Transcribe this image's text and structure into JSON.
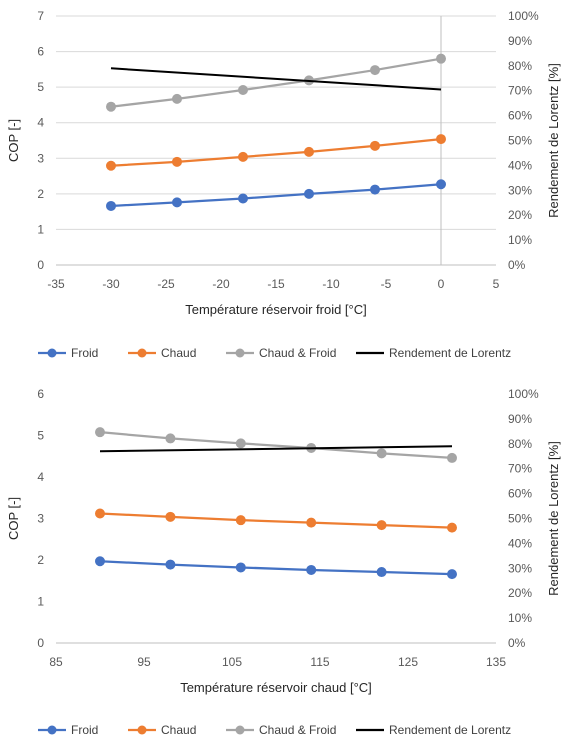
{
  "chart_data": [
    {
      "type": "line",
      "xlabel": "Température réservoir froid [°C]",
      "ylabel": "COP [-]",
      "y2label": "Rendement de Lorentz [%]",
      "xlim": [
        -35,
        5
      ],
      "xticks": [
        "-35",
        "-30",
        "-25",
        "-20",
        "-15",
        "-10",
        "-5",
        "0",
        "5"
      ],
      "ylim": [
        0,
        7
      ],
      "yticks": [
        "0",
        "1",
        "2",
        "3",
        "4",
        "5",
        "6",
        "7"
      ],
      "y2lim": [
        0,
        100
      ],
      "y2ticks": [
        "0%",
        "10%",
        "20%",
        "30%",
        "40%",
        "50%",
        "60%",
        "70%",
        "80%",
        "90%",
        "100%"
      ],
      "grid": true,
      "legend_position": "bottom",
      "series": [
        {
          "name": "Froid",
          "axis": "left",
          "color": "#4472C4",
          "markers": true,
          "x": [
            -30,
            -24,
            -18,
            -12,
            -6,
            0
          ],
          "values": [
            1.66,
            1.76,
            1.87,
            2.0,
            2.12,
            2.27
          ]
        },
        {
          "name": "Chaud",
          "axis": "left",
          "color": "#ED7D31",
          "markers": true,
          "x": [
            -30,
            -24,
            -18,
            -12,
            -6,
            0
          ],
          "values": [
            2.79,
            2.9,
            3.04,
            3.18,
            3.35,
            3.54
          ]
        },
        {
          "name": "Chaud & Froid",
          "axis": "left",
          "color": "#A5A5A5",
          "markers": true,
          "x": [
            -30,
            -24,
            -18,
            -12,
            -6,
            0
          ],
          "values": [
            4.45,
            4.67,
            4.92,
            5.19,
            5.48,
            5.8
          ]
        },
        {
          "name": "Rendement de Lorentz",
          "axis": "right",
          "color": "#000000",
          "markers": false,
          "x": [
            -30,
            0
          ],
          "values": [
            79,
            70.5
          ]
        }
      ]
    },
    {
      "type": "line",
      "xlabel": "Température réservoir chaud [°C]",
      "ylabel": "COP [-]",
      "y2label": "Rendement de Lorentz [%]",
      "xlim": [
        85,
        135
      ],
      "xticks": [
        "85",
        "95",
        "105",
        "115",
        "125",
        "135"
      ],
      "ylim": [
        0,
        6
      ],
      "yticks": [
        "0",
        "1",
        "2",
        "3",
        "4",
        "5",
        "6"
      ],
      "y2lim": [
        0,
        100
      ],
      "y2ticks": [
        "0%",
        "10%",
        "20%",
        "30%",
        "40%",
        "50%",
        "60%",
        "70%",
        "80%",
        "90%",
        "100%"
      ],
      "grid": false,
      "legend_position": "bottom",
      "series": [
        {
          "name": "Froid",
          "axis": "left",
          "color": "#4472C4",
          "markers": true,
          "x": [
            90,
            98,
            106,
            114,
            122,
            130
          ],
          "values": [
            1.97,
            1.89,
            1.82,
            1.76,
            1.71,
            1.66
          ]
        },
        {
          "name": "Chaud",
          "axis": "left",
          "color": "#ED7D31",
          "markers": true,
          "x": [
            90,
            98,
            106,
            114,
            122,
            130
          ],
          "values": [
            3.12,
            3.04,
            2.96,
            2.9,
            2.84,
            2.78
          ]
        },
        {
          "name": "Chaud & Froid",
          "axis": "left",
          "color": "#A5A5A5",
          "markers": true,
          "x": [
            90,
            98,
            106,
            114,
            122,
            130
          ],
          "values": [
            5.08,
            4.93,
            4.81,
            4.7,
            4.57,
            4.46
          ]
        },
        {
          "name": "Rendement de Lorentz",
          "axis": "right",
          "color": "#000000",
          "markers": false,
          "x": [
            90,
            130
          ],
          "values": [
            77,
            79
          ]
        }
      ]
    }
  ]
}
